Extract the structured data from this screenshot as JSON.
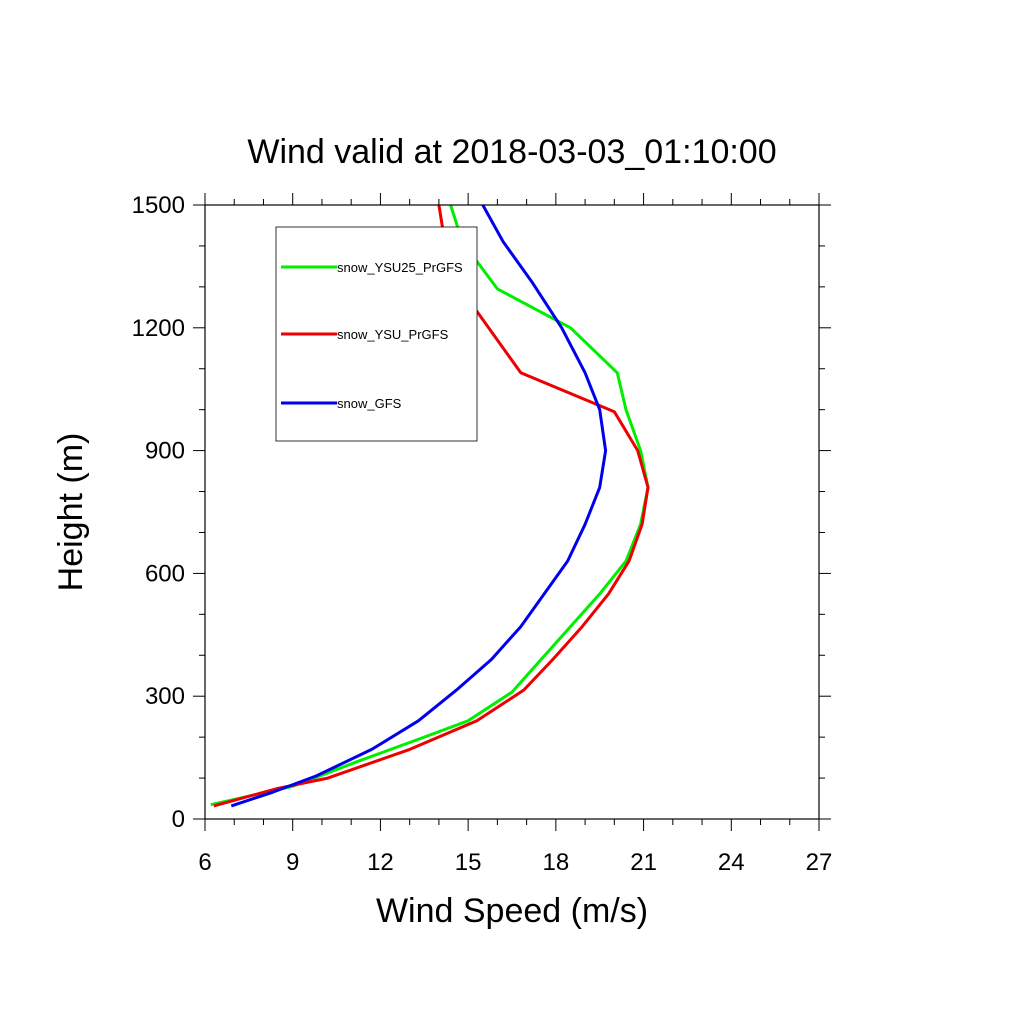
{
  "chart_data": {
    "type": "line",
    "title": "Wind valid at 2018-03-03_01:10:00",
    "xlabel": "Wind Speed (m/s)",
    "ylabel": "Height (m)",
    "xlim": [
      6,
      27
    ],
    "ylim": [
      0,
      1500
    ],
    "x_ticks": [
      "6",
      "9",
      "12",
      "15",
      "18",
      "21",
      "24",
      "27"
    ],
    "y_ticks": [
      "0",
      "300",
      "600",
      "900",
      "1200",
      "1500"
    ],
    "grid": false,
    "legend_placement": "top-left",
    "series": [
      {
        "name": "snow_YSU25_PrGFS",
        "color": "#00ee00",
        "points": [
          [
            6.2,
            35
          ],
          [
            9.0,
            80
          ],
          [
            11.2,
            140
          ],
          [
            13.5,
            200
          ],
          [
            15.0,
            240
          ],
          [
            16.5,
            310
          ],
          [
            17.5,
            390
          ],
          [
            18.5,
            470
          ],
          [
            19.5,
            550
          ],
          [
            20.4,
            630
          ],
          [
            20.9,
            720
          ],
          [
            21.15,
            810
          ],
          [
            20.9,
            900
          ],
          [
            20.4,
            1000
          ],
          [
            20.1,
            1090
          ],
          [
            18.5,
            1200
          ],
          [
            16.0,
            1295
          ],
          [
            14.8,
            1410
          ],
          [
            14.4,
            1500
          ]
        ]
      },
      {
        "name": "snow_YSU_PrGFS",
        "color": "#ee0000",
        "points": [
          [
            6.3,
            32
          ],
          [
            8.5,
            75
          ],
          [
            10.2,
            100
          ],
          [
            13.0,
            170
          ],
          [
            15.3,
            240
          ],
          [
            16.9,
            315
          ],
          [
            17.9,
            390
          ],
          [
            18.9,
            470
          ],
          [
            19.8,
            550
          ],
          [
            20.5,
            630
          ],
          [
            20.95,
            720
          ],
          [
            21.15,
            810
          ],
          [
            20.8,
            900
          ],
          [
            20.0,
            995
          ],
          [
            16.8,
            1090
          ],
          [
            15.9,
            1180
          ],
          [
            14.7,
            1300
          ],
          [
            14.2,
            1410
          ],
          [
            14.0,
            1500
          ]
        ]
      },
      {
        "name": "snow_GFS",
        "color": "#0000ee",
        "points": [
          [
            6.9,
            32
          ],
          [
            8.3,
            65
          ],
          [
            9.8,
            105
          ],
          [
            11.7,
            170
          ],
          [
            13.3,
            240
          ],
          [
            14.6,
            315
          ],
          [
            15.8,
            390
          ],
          [
            16.8,
            470
          ],
          [
            17.6,
            550
          ],
          [
            18.4,
            630
          ],
          [
            19.0,
            720
          ],
          [
            19.5,
            810
          ],
          [
            19.7,
            900
          ],
          [
            19.5,
            1000
          ],
          [
            19.0,
            1090
          ],
          [
            18.2,
            1200
          ],
          [
            17.2,
            1310
          ],
          [
            16.2,
            1410
          ],
          [
            15.5,
            1500
          ]
        ]
      }
    ]
  }
}
